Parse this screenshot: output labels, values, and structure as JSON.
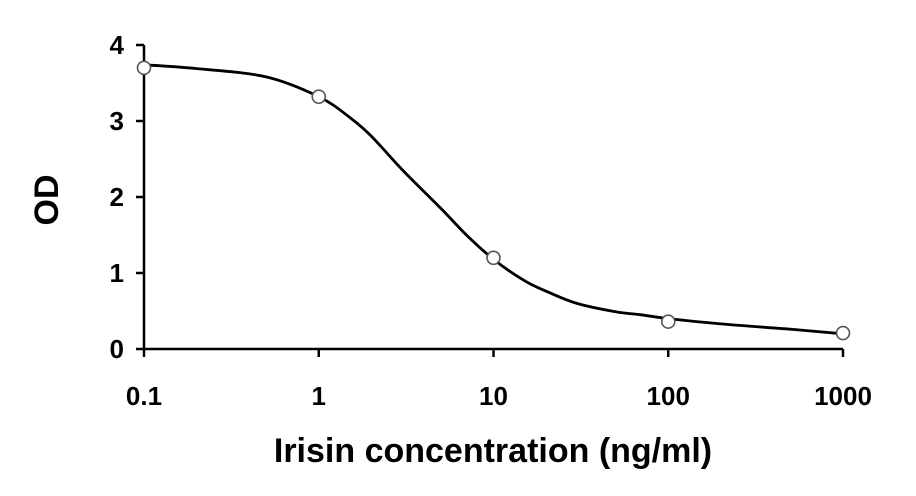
{
  "chart_data": {
    "type": "scatter",
    "title": "",
    "xlabel": "Irisin concentration (ng/ml)",
    "ylabel": "OD",
    "xscale": "log",
    "xlim": [
      0.1,
      1000
    ],
    "ylim": [
      0,
      4
    ],
    "x_ticks": [
      0.1,
      1,
      10,
      100,
      1000
    ],
    "x_tick_labels": [
      "0.1",
      "1",
      "10",
      "100",
      "1000"
    ],
    "y_ticks": [
      0,
      1,
      2,
      3,
      4
    ],
    "y_tick_labels": [
      "0",
      "1",
      "2",
      "3",
      "4"
    ],
    "grid": false,
    "legend": "none",
    "series": [
      {
        "x": [
          0.1,
          1,
          10,
          100,
          1000
        ],
        "y": [
          3.7,
          3.32,
          1.2,
          0.36,
          0.21
        ],
        "marker": "open-circle"
      }
    ],
    "fit_curve": {
      "type": "four-parameter-logistic",
      "x": [
        0.1,
        0.2,
        0.5,
        1,
        1.5,
        2,
        3,
        5,
        7,
        10,
        15,
        20,
        30,
        50,
        70,
        100,
        200,
        500,
        1000
      ],
      "y": [
        3.74,
        3.69,
        3.58,
        3.32,
        3.05,
        2.8,
        2.36,
        1.85,
        1.5,
        1.18,
        0.9,
        0.76,
        0.6,
        0.49,
        0.45,
        0.4,
        0.33,
        0.26,
        0.2
      ]
    },
    "colors": {
      "line": "#000000",
      "marker_edge": "#555555",
      "marker_fill": "#ffffff"
    }
  }
}
